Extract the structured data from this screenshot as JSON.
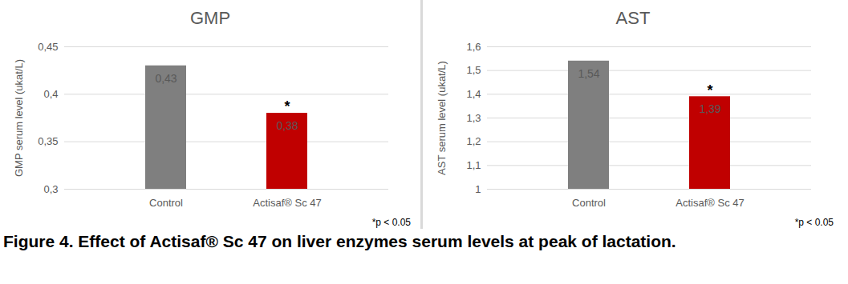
{
  "chart_data": [
    {
      "type": "bar",
      "title": "GMP",
      "y_label": "GMP serum level (ukat/L)",
      "categories": [
        "Control",
        "Actisaf® Sc 47"
      ],
      "values": [
        0.43,
        0.38
      ],
      "value_labels": [
        "0,43",
        "0,38"
      ],
      "data_labels": true,
      "colors": [
        "#7f7f7f",
        "#c00000"
      ],
      "ylim": [
        0.3,
        0.45
      ],
      "yticks": [
        {
          "value": 0.3,
          "label": "0,3"
        },
        {
          "value": 0.35,
          "label": "0,35"
        },
        {
          "value": 0.4,
          "label": "0,4"
        },
        {
          "value": 0.45,
          "label": "0,45"
        }
      ],
      "grid": true,
      "annotations": [
        {
          "category": "Actisaf® Sc 47",
          "text": "*"
        }
      ],
      "note": "*p < 0.05"
    },
    {
      "type": "bar",
      "title": "AST",
      "y_label": "AST serum level (ukat/L)",
      "categories": [
        "Control",
        "Actisaf® Sc 47"
      ],
      "values": [
        1.54,
        1.39
      ],
      "value_labels": [
        "1,54",
        "1,39"
      ],
      "data_labels": true,
      "colors": [
        "#7f7f7f",
        "#c00000"
      ],
      "ylim": [
        1,
        1.6
      ],
      "yticks": [
        1,
        {
          "value": 1.1,
          "label": "1,1"
        },
        {
          "value": 1.2,
          "label": "1,2"
        },
        {
          "value": 1.3,
          "label": "1,3"
        },
        {
          "value": 1.4,
          "label": "1,4"
        },
        {
          "value": 1.5,
          "label": "1,5"
        },
        {
          "value": 1.6,
          "label": "1,6"
        }
      ],
      "grid": true,
      "annotations": [
        {
          "category": "Actisaf® Sc 47",
          "text": "*"
        }
      ],
      "note": "*p < 0.05"
    }
  ],
  "caption": "Figure 4. Effect of Actisaf® Sc 47 on liver enzymes serum levels at peak of lactation."
}
